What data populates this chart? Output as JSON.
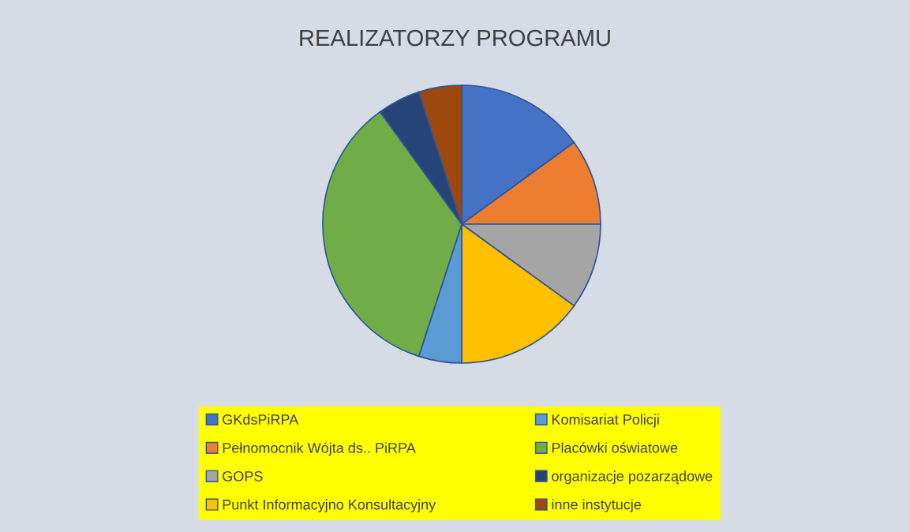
{
  "chart_data": {
    "type": "pie",
    "title": "REALIZATORZY PROGRAMU",
    "categories": [
      "GKdsPiRPA",
      "Pełnomocnik Wójta ds.. PiRPA",
      "GOPS",
      "Punkt Informacyjno Konsultacyjny",
      "Komisariat Policji",
      "Placówki oświatowe",
      "organizacje pozarządowe",
      "inne instytucje"
    ],
    "values": [
      15,
      10,
      10,
      15,
      5,
      35,
      5,
      5
    ],
    "colors": [
      "#4472c4",
      "#ed7d31",
      "#a5a5a5",
      "#ffc000",
      "#5b9bd5",
      "#70ad47",
      "#264478",
      "#9e480e"
    ],
    "legend": "bottom"
  }
}
